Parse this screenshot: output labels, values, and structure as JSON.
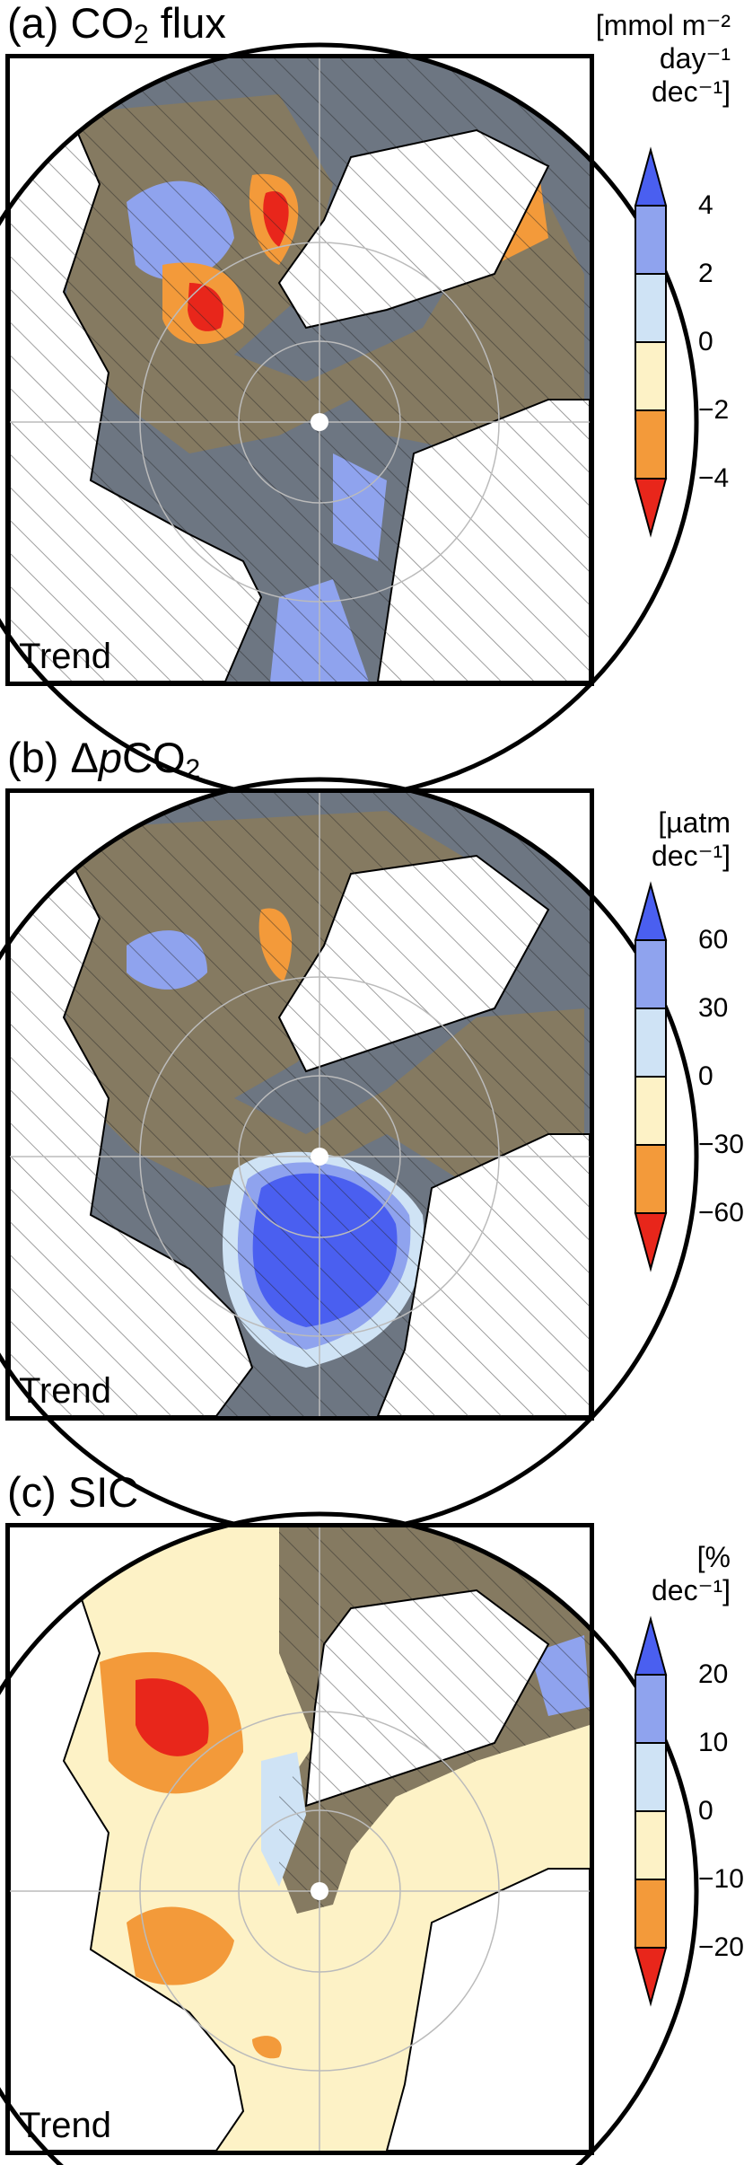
{
  "panels": [
    {
      "title_prefix": "(a) CO",
      "title_sub": "2",
      "title_suffix": " flux",
      "unit_lines": [
        "[mmol m⁻²",
        "day⁻¹",
        "dec⁻¹]"
      ],
      "trend_label": "Trend",
      "colorbar_ticks": [
        "4",
        "2",
        "0",
        "−2",
        "−4"
      ],
      "colorbar_levels": [
        4,
        2,
        0,
        -2,
        -4
      ]
    },
    {
      "title_prefix": "(b) Δ",
      "title_italic": "p",
      "title_mid": "CO",
      "title_sub": "2",
      "title_suffix": "",
      "unit_lines": [
        "[µatm",
        "dec⁻¹]"
      ],
      "trend_label": "Trend",
      "colorbar_ticks": [
        "60",
        "30",
        "0",
        "−30",
        "−60"
      ],
      "colorbar_levels": [
        60,
        30,
        0,
        -30,
        -60
      ]
    },
    {
      "title_prefix": "(c) SIC",
      "title_sub": "",
      "title_suffix": "",
      "unit_lines": [
        "[%",
        "dec⁻¹]"
      ],
      "trend_label": "Trend",
      "colorbar_ticks": [
        "20",
        "10",
        "0",
        "−10",
        "−20"
      ],
      "colorbar_levels": [
        20,
        10,
        0,
        -10,
        -20
      ]
    }
  ],
  "colors": {
    "strong_positive": "#4a5ff0",
    "positive": "#8fa3ee",
    "weak_positive": "#cfe3f5",
    "weak_negative": "#fdf2c6",
    "negative": "#f39a3a",
    "strong_negative": "#e8261b",
    "insignificant": "#6d7682",
    "insignificant_tan": "#857a61",
    "land": "#ffffff"
  }
}
